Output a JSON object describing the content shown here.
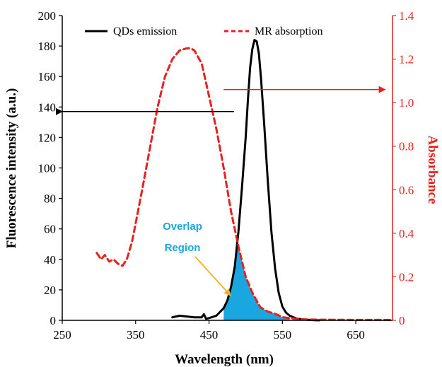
{
  "chart_data": {
    "type": "line",
    "xlabel": "Wavelength (nm)",
    "ylabel_left": "Fluorescence intensity (a.u.)",
    "ylabel_right": "Absorbance",
    "xlim": [
      250,
      700
    ],
    "ylim_left": [
      0,
      200
    ],
    "ylim_right": [
      0,
      1.4
    ],
    "x_ticks": [
      "250",
      "350",
      "450",
      "550",
      "650"
    ],
    "x_tick_values": [
      250,
      350,
      450,
      550,
      650
    ],
    "y_left_ticks": [
      "0",
      "20",
      "40",
      "60",
      "80",
      "100",
      "120",
      "140",
      "160",
      "180",
      "200"
    ],
    "y_left_tick_values": [
      0,
      20,
      40,
      60,
      80,
      100,
      120,
      140,
      160,
      180,
      200
    ],
    "y_right_ticks": [
      "0",
      "0.2",
      "0.4",
      "0.6",
      "0.8",
      "1.0",
      "1.2",
      "1.4"
    ],
    "y_right_tick_values": [
      0,
      0.2,
      0.4,
      0.6,
      0.8,
      1.0,
      1.2,
      1.4
    ],
    "grid": false,
    "legend_placement": "top",
    "series": [
      {
        "name": "QDs emission",
        "axis": "left",
        "color": "#000000",
        "style": "solid",
        "x": [
          400,
          410,
          420,
          430,
          440,
          443,
          446,
          450,
          460,
          470,
          475,
          480,
          485,
          490,
          495,
          500,
          503,
          506,
          509,
          512,
          515,
          518,
          521,
          525,
          530,
          535,
          540,
          545,
          550,
          555,
          560,
          570,
          580,
          590,
          600
        ],
        "y": [
          2,
          3,
          2.5,
          2,
          2,
          4,
          1,
          1.5,
          3,
          8,
          13,
          22,
          35,
          58,
          88,
          120,
          145,
          166,
          178,
          184,
          183,
          175,
          158,
          130,
          92,
          58,
          34,
          18,
          9,
          5,
          3,
          1,
          0.5,
          0.2,
          0
        ]
      },
      {
        "name": "MR absorption",
        "axis": "right",
        "color": "#e8211e",
        "style": "dashed",
        "x": [
          297,
          303,
          308,
          314,
          320,
          326,
          332,
          338,
          345,
          352,
          360,
          370,
          380,
          390,
          400,
          410,
          420,
          425,
          430,
          440,
          450,
          460,
          470,
          480,
          490,
          500,
          510,
          520,
          530,
          540,
          550,
          560,
          575,
          600,
          650,
          700
        ],
        "y": [
          0.31,
          0.28,
          0.3,
          0.27,
          0.28,
          0.26,
          0.25,
          0.28,
          0.36,
          0.48,
          0.62,
          0.8,
          0.98,
          1.12,
          1.2,
          1.24,
          1.25,
          1.25,
          1.24,
          1.18,
          1.03,
          0.88,
          0.7,
          0.5,
          0.34,
          0.2,
          0.12,
          0.06,
          0.04,
          0.03,
          0.015,
          0.01,
          0.005,
          0.003,
          0.002,
          0.002
        ]
      }
    ],
    "overlap_region": {
      "label_line1": "Overlap",
      "label_line2": "Region",
      "color": "#1aa7e0"
    },
    "annotations": [
      {
        "type": "arrow",
        "color": "#000000",
        "from_x": 484,
        "to_x": 250,
        "value": 137,
        "axis": "left"
      },
      {
        "type": "arrow",
        "color": "#e8211e",
        "from_x": 470,
        "to_x": 690,
        "value": 1.06,
        "axis": "right"
      }
    ]
  }
}
